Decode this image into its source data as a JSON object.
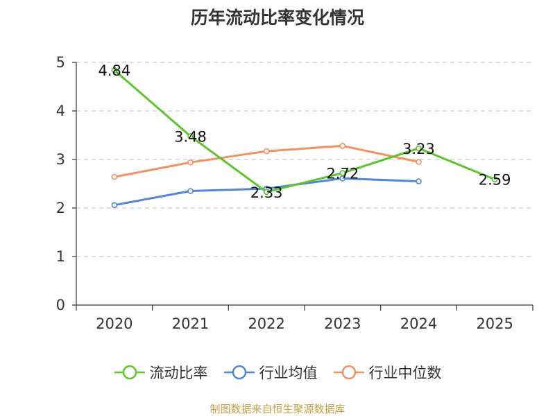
{
  "chart_data": {
    "type": "line",
    "title": "历年流动比率变化情况",
    "categories": [
      "2020",
      "2021",
      "2022",
      "2023",
      "2024",
      "2025"
    ],
    "ylim": [
      0,
      5
    ],
    "yticks": [
      "0",
      "1",
      "2",
      "3",
      "4",
      "5"
    ],
    "grid": true,
    "legend_position": "bottom",
    "series": [
      {
        "name": "流动比率",
        "color": "#5cc42c",
        "values": [
          4.84,
          3.48,
          2.33,
          2.72,
          3.23,
          2.59
        ],
        "labels": [
          "4.84",
          "3.48",
          "2.33",
          "2.72",
          "3.23",
          "2.59"
        ],
        "show_labels": true
      },
      {
        "name": "行业均值",
        "color": "#4f86d8",
        "values": [
          2.06,
          2.35,
          2.4,
          2.61,
          2.55,
          null
        ],
        "show_labels": false
      },
      {
        "name": "行业中位数",
        "color": "#f49160",
        "values": [
          2.64,
          2.94,
          3.17,
          3.28,
          2.95,
          null
        ],
        "show_labels": false
      }
    ]
  },
  "source": "制图数据来自恒生聚源数据库"
}
